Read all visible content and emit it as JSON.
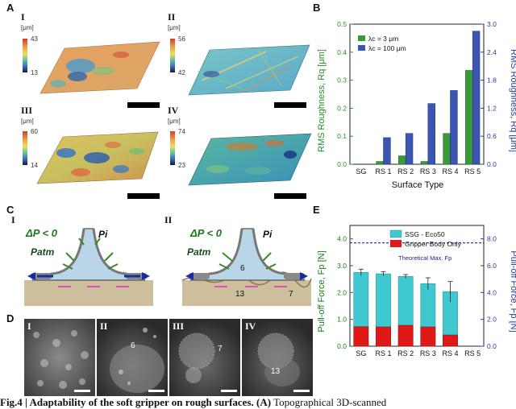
{
  "panelA": {
    "letter": "A",
    "maps": [
      {
        "label": "I",
        "unit": "[μm]",
        "max": "43",
        "min": "13"
      },
      {
        "label": "II",
        "unit": "[μm]",
        "max": "56",
        "min": "42"
      },
      {
        "label": "III",
        "unit": "[μm]",
        "max": "60",
        "min": "14"
      },
      {
        "label": "IV",
        "unit": "[μm]",
        "max": "74",
        "min": "23"
      }
    ]
  },
  "panelB": {
    "letter": "B",
    "legend": [
      "λc = 3 μm",
      "λc = 100 μm"
    ],
    "ylabel_left": "RMS Roughness, Rq [μm]",
    "ylabel_right": "RMS Roughness, Rq [μm]",
    "xlabel": "Surface Type",
    "colors": {
      "green": "#3a9a3a",
      "blue": "#3c55b0"
    }
  },
  "panelC": {
    "letter": "C",
    "diagrams": [
      {
        "label": "I",
        "dp": "ΔP < 0",
        "patm": "Patm",
        "pi": "Pi",
        "num1": "",
        "num2": ""
      },
      {
        "label": "II",
        "dp": "ΔP < 0",
        "patm": "Patm",
        "pi": "Pi",
        "num1": "13",
        "num2": "7",
        "num3": "6"
      }
    ]
  },
  "panelD": {
    "letter": "D",
    "images": [
      {
        "label": "I",
        "num": ""
      },
      {
        "label": "II",
        "num": "6"
      },
      {
        "label": "III",
        "num": "7"
      },
      {
        "label": "IV",
        "num": "13"
      }
    ]
  },
  "panelE": {
    "letter": "E",
    "legend": [
      "SSG - Eco50",
      "Gripper Body Only"
    ],
    "ylabel_left": "Pull-off Force, Fp [N]",
    "ylabel_right": "Pull-off Force, Fp [N]",
    "theoretical_label": "Theoretical Max. Fp",
    "colors": {
      "cyan": "#3fc8d0",
      "red": "#e01818",
      "dashed": "#1a2a8c"
    }
  },
  "caption": {
    "prefix": "Fig.4 | ",
    "bold": "Adaptability of the soft gripper on rough surfaces. (A)",
    "rest": " Topographical 3D-scanned"
  },
  "chart_data": [
    {
      "type": "bar",
      "title": "",
      "categories": [
        "SG",
        "RS 1",
        "RS 2",
        "RS 3",
        "RS 4",
        "RS 5"
      ],
      "series": [
        {
          "name": "λc = 3 μm",
          "axis": "left",
          "values": [
            0.0,
            0.01,
            0.03,
            0.01,
            0.11,
            0.335
          ]
        },
        {
          "name": "λc = 100 μm",
          "axis": "right",
          "values": [
            0.0,
            0.57,
            0.66,
            1.3,
            1.58,
            2.85
          ]
        }
      ],
      "xlabel": "Surface Type",
      "ylabel": "RMS Roughness, Rq [μm]",
      "ylim_left": [
        0,
        0.5
      ],
      "yticks_left": [
        0.0,
        0.1,
        0.2,
        0.3,
        0.4,
        0.5
      ],
      "ylim_right": [
        0,
        3.0
      ],
      "yticks_right": [
        0.0,
        0.6,
        1.2,
        1.8,
        2.4,
        3.0
      ]
    },
    {
      "type": "bar",
      "title": "",
      "categories": [
        "SG",
        "RS 1",
        "RS 2",
        "RS 3",
        "RS 4",
        "RS 5"
      ],
      "series": [
        {
          "name": "SSG - Eco50",
          "values": [
            2.75,
            2.7,
            2.6,
            2.33,
            2.03,
            0
          ]
        },
        {
          "name": "Gripper Body Only",
          "values": [
            0.73,
            0.72,
            0.78,
            0.72,
            0.42,
            0
          ]
        }
      ],
      "errors": [
        0.12,
        0.08,
        0.07,
        0.22,
        0.38,
        0
      ],
      "xlabel": "Surface Type",
      "ylabel": "Pull-off Force, Fp [N]",
      "ylim_left": [
        0,
        4.5
      ],
      "yticks_left": [
        0.0,
        1.0,
        2.0,
        3.0,
        4.0
      ],
      "ylim_right": [
        0,
        9.0
      ],
      "yticks_right": [
        0.0,
        2.0,
        4.0,
        6.0,
        8.0
      ],
      "theoretical_max": 3.85
    }
  ]
}
